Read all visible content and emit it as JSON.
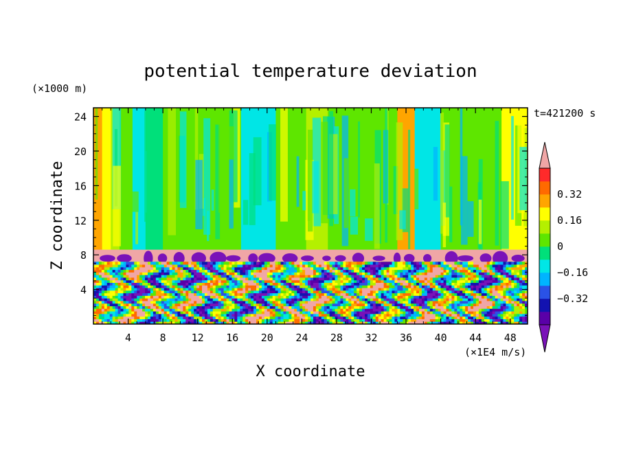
{
  "chart_data": {
    "type": "heatmap",
    "title": "potential temperature deviation",
    "xlabel": "X coordinate",
    "ylabel": "Z coordinate",
    "x_unit": "(×1E4 m/s)",
    "y_unit": "(×1000 m)",
    "time_label": "t=421200 s",
    "x_range": [
      0,
      50
    ],
    "y_range": [
      0,
      25
    ],
    "x_ticks": [
      4,
      8,
      12,
      16,
      20,
      24,
      28,
      32,
      36,
      40,
      44,
      48
    ],
    "y_ticks": [
      4,
      8,
      12,
      16,
      20,
      24
    ],
    "colorbar": {
      "levels": [
        -0.48,
        -0.4,
        -0.32,
        -0.24,
        -0.16,
        -0.08,
        0,
        0.08,
        0.16,
        0.24,
        0.32,
        0.4
      ],
      "tick_labels": [
        "0.32",
        "0.16",
        "0",
        "−0.16",
        "−0.32"
      ],
      "tick_values": [
        0.32,
        0.16,
        0,
        -0.16,
        -0.32
      ],
      "colors": [
        "#7a12b8",
        "#5a00a8",
        "#1212b0",
        "#2a52e6",
        "#00b4ff",
        "#00e6e6",
        "#00e07a",
        "#5ee600",
        "#b4f000",
        "#ffff00",
        "#ffa500",
        "#ff6a00",
        "#ff2a2a",
        "#f0a6a6"
      ],
      "under_color": "#7a12b8",
      "over_color": "#f0a6a6"
    },
    "layers": {
      "upper_layer_z": [
        8.5,
        25
      ],
      "inversion_z": [
        7.2,
        8.6
      ],
      "turbulent_layer_z": [
        0,
        7.2
      ]
    },
    "upper_columns": [
      {
        "x": [
          0,
          1
        ],
        "value": 0.3
      },
      {
        "x": [
          1,
          2
        ],
        "value": 0.2
      },
      {
        "x": [
          2,
          3
        ],
        "value": 0.1
      },
      {
        "x": [
          3,
          4.5
        ],
        "value": 0.03
      },
      {
        "x": [
          4.5,
          6
        ],
        "value": -0.1
      },
      {
        "x": [
          6,
          8
        ],
        "value": -0.02
      },
      {
        "x": [
          8,
          13
        ],
        "value": 0.04
      },
      {
        "x": [
          13,
          17
        ],
        "value": 0.03
      },
      {
        "x": [
          17,
          21
        ],
        "value": -0.12
      },
      {
        "x": [
          21,
          24.5
        ],
        "value": 0.0
      },
      {
        "x": [
          24.5,
          27
        ],
        "value": 0.15
      },
      {
        "x": [
          27,
          35
        ],
        "value": 0.0
      },
      {
        "x": [
          35,
          37
        ],
        "value": 0.25
      },
      {
        "x": [
          37,
          40
        ],
        "value": -0.12
      },
      {
        "x": [
          40,
          45
        ],
        "value": 0.0
      },
      {
        "x": [
          45,
          47
        ],
        "value": 0.05
      },
      {
        "x": [
          47,
          50
        ],
        "value": 0.22
      }
    ]
  }
}
